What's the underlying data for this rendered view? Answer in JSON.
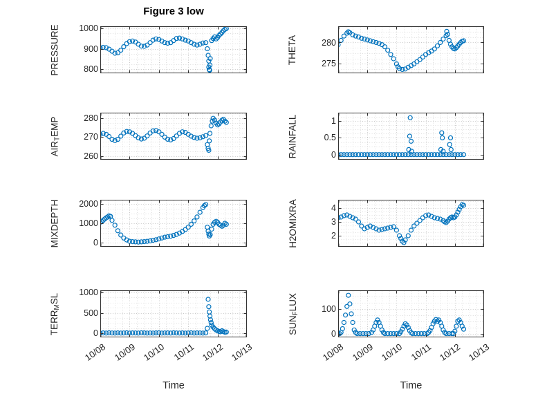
{
  "figure": {
    "title": "Figure 3 low",
    "xlabel": "Time"
  },
  "style": {
    "marker_color": "#0072BD",
    "box_color": "#333333",
    "grid_minor_color": "#dedede",
    "grid_major_color": "#c9c9c9",
    "text_color": "#262626",
    "background": "#ffffff"
  },
  "x_axis": {
    "lim": [
      0,
      5
    ],
    "ticks": [
      0,
      1,
      2,
      3,
      4,
      5
    ],
    "tick_labels": [
      "10/08",
      "10/09",
      "10/10",
      "10/11",
      "10/12",
      "10/13"
    ],
    "minor_step": 0.25
  },
  "chart_data": [
    {
      "name": "pressure",
      "type": "scatter",
      "label": "PRESSURE",
      "label_parts": [
        {
          "t": "PRESSURE",
          "sub": false
        }
      ],
      "ylim": [
        780,
        1010
      ],
      "yticks": [
        800,
        900,
        1000
      ],
      "ytick_labels": [
        "800",
        "900",
        "1000"
      ],
      "x": [
        0,
        0.1,
        0.2,
        0.3,
        0.4,
        0.5,
        0.6,
        0.7,
        0.8,
        0.9,
        1,
        1.1,
        1.2,
        1.3,
        1.4,
        1.5,
        1.6,
        1.7,
        1.8,
        1.9,
        2,
        2.1,
        2.2,
        2.3,
        2.4,
        2.5,
        2.6,
        2.7,
        2.8,
        2.9,
        3,
        3.1,
        3.2,
        3.3,
        3.4,
        3.5,
        3.6,
        3.65,
        3.68,
        3.7,
        3.7,
        3.72,
        3.73,
        3.74,
        3.75,
        3.8,
        3.85,
        3.9,
        3.95,
        4,
        4.05,
        4.1,
        4.15,
        4.2,
        4.25,
        4.3
      ],
      "y": [
        905,
        907,
        905,
        898,
        888,
        878,
        880,
        893,
        910,
        925,
        935,
        938,
        933,
        922,
        913,
        912,
        918,
        930,
        942,
        948,
        945,
        938,
        930,
        927,
        930,
        940,
        950,
        952,
        948,
        942,
        938,
        930,
        922,
        918,
        922,
        928,
        930,
        900,
        868,
        840,
        810,
        798,
        795,
        820,
        852,
        940,
        950,
        958,
        948,
        955,
        965,
        972,
        980,
        988,
        995,
        999
      ]
    },
    {
      "name": "theta",
      "type": "scatter",
      "label": "THETA",
      "label_parts": [
        {
          "t": "THETA",
          "sub": false
        }
      ],
      "ylim": [
        272.8,
        283.8
      ],
      "yticks": [
        275,
        280
      ],
      "ytick_labels": [
        "275",
        "280"
      ],
      "x": [
        0,
        0.1,
        0.2,
        0.3,
        0.4,
        0.5,
        0.6,
        0.7,
        0.8,
        0.9,
        1,
        1.1,
        1.2,
        1.3,
        1.4,
        1.5,
        1.6,
        1.7,
        1.8,
        1.9,
        2,
        2.1,
        2.2,
        2.3,
        2.4,
        2.5,
        2.6,
        2.7,
        2.8,
        2.9,
        3,
        3.1,
        3.2,
        3.3,
        3.4,
        3.5,
        3.6,
        3.7,
        3.8,
        3.9,
        4,
        4.1,
        4.2,
        4.3,
        0.35,
        2.05,
        3.72,
        3.75,
        3.85,
        3.95,
        4.05,
        4.15,
        4.25
      ],
      "y": [
        279.5,
        280.5,
        281.5,
        282.2,
        282.3,
        281.8,
        281.5,
        281.3,
        281,
        280.8,
        280.6,
        280.4,
        280.2,
        280,
        279.8,
        279.5,
        279,
        278.2,
        277.2,
        276.2,
        275,
        273.9,
        273.7,
        273.8,
        274.2,
        274.6,
        275,
        275.5,
        276,
        276.6,
        277.2,
        277.6,
        278,
        278.5,
        279.2,
        280,
        280.8,
        281.6,
        280.5,
        279,
        278.5,
        279.2,
        280,
        280.4,
        282.5,
        274.3,
        282.6,
        281.9,
        279.6,
        278.6,
        278.8,
        279.6,
        280.3
      ]
    },
    {
      "name": "air-temp",
      "type": "scatter",
      "label": "AIR_TEMP",
      "label_parts": [
        {
          "t": "AIR",
          "sub": false
        },
        {
          "t": "T",
          "sub": true
        },
        {
          "t": "EMP",
          "sub": false
        }
      ],
      "ylim": [
        258,
        283
      ],
      "yticks": [
        260,
        270,
        280
      ],
      "ytick_labels": [
        "260",
        "270",
        "280"
      ],
      "x": [
        0,
        0.1,
        0.2,
        0.3,
        0.4,
        0.5,
        0.6,
        0.7,
        0.8,
        0.9,
        1,
        1.1,
        1.2,
        1.3,
        1.4,
        1.5,
        1.6,
        1.7,
        1.8,
        1.9,
        2,
        2.1,
        2.2,
        2.3,
        2.4,
        2.5,
        2.6,
        2.7,
        2.8,
        2.9,
        3,
        3.1,
        3.2,
        3.3,
        3.4,
        3.5,
        3.6,
        3.65,
        3.68,
        3.7,
        3.72,
        3.74,
        3.78,
        3.82,
        3.85,
        3.9,
        3.95,
        4,
        4.05,
        4.1,
        4.15,
        4.2,
        4.25,
        4.3
      ],
      "y": [
        271.5,
        272,
        271.5,
        270.3,
        268.8,
        268.2,
        268.8,
        270.5,
        272.2,
        273,
        272.8,
        272,
        270.8,
        269.6,
        269,
        269.4,
        270.6,
        272.2,
        273.3,
        273.5,
        272.8,
        271.5,
        270,
        268.9,
        268.5,
        269.2,
        270.6,
        272,
        272.8,
        272.5,
        271.5,
        270.5,
        269.8,
        269.4,
        269.6,
        270.2,
        270.8,
        266,
        264,
        263,
        268,
        272,
        276,
        278.5,
        280,
        279,
        277.5,
        276.5,
        277,
        278,
        279,
        279.5,
        278.5,
        277.8
      ]
    },
    {
      "name": "rainfall",
      "type": "scatter",
      "label": "RAINFALL",
      "label_parts": [
        {
          "t": "RAINFALL",
          "sub": false
        }
      ],
      "ylim": [
        -0.15,
        1.25
      ],
      "yticks": [
        0,
        0.5,
        1
      ],
      "ytick_labels": [
        "0",
        "0.5",
        "1"
      ],
      "x": [
        0,
        0.1,
        0.2,
        0.3,
        0.4,
        0.5,
        0.6,
        0.7,
        0.8,
        0.9,
        1,
        1.1,
        1.2,
        1.3,
        1.4,
        1.5,
        1.6,
        1.7,
        1.8,
        1.9,
        2,
        2.1,
        2.2,
        2.3,
        2.4,
        2.5,
        2.6,
        2.7,
        2.8,
        2.9,
        3,
        3.1,
        3.2,
        3.3,
        3.4,
        3.5,
        3.6,
        3.7,
        3.8,
        3.9,
        4,
        4.1,
        4.2,
        4.3,
        2.42,
        2.45,
        2.47,
        2.5,
        2.52,
        3.52,
        3.55,
        3.57,
        3.6,
        3.82,
        3.85,
        3.87
      ],
      "y": [
        0,
        0,
        0,
        0,
        0,
        0,
        0,
        0,
        0,
        0,
        0,
        0,
        0,
        0,
        0,
        0,
        0,
        0,
        0,
        0,
        0,
        0,
        0,
        0,
        0,
        0,
        0,
        0,
        0,
        0,
        0,
        0,
        0,
        0,
        0,
        0,
        0,
        0,
        0,
        0,
        0,
        0,
        0,
        0,
        0.15,
        0.55,
        1.1,
        0.4,
        0.1,
        0.15,
        0.65,
        0.5,
        0.1,
        0.3,
        0.5,
        0.15
      ]
    },
    {
      "name": "mixdepth",
      "type": "scatter",
      "label": "MIXDEPTH",
      "label_parts": [
        {
          "t": "MIXDEPTH",
          "sub": false
        }
      ],
      "ylim": [
        -200,
        2200
      ],
      "yticks": [
        0,
        1000,
        2000
      ],
      "ytick_labels": [
        "0",
        "1000",
        "2000"
      ],
      "x": [
        0,
        0.05,
        0.1,
        0.15,
        0.2,
        0.25,
        0.3,
        0.35,
        0.4,
        0.5,
        0.6,
        0.7,
        0.8,
        0.9,
        1,
        1.1,
        1.2,
        1.3,
        1.4,
        1.5,
        1.6,
        1.7,
        1.8,
        1.9,
        2,
        2.1,
        2.2,
        2.3,
        2.4,
        2.5,
        2.6,
        2.7,
        2.8,
        2.9,
        3,
        3.1,
        3.2,
        3.3,
        3.4,
        3.5,
        3.55,
        3.6,
        3.65,
        3.68,
        3.7,
        3.72,
        3.75,
        3.8,
        3.85,
        3.9,
        3.95,
        4,
        4.05,
        4.1,
        4.15,
        4.2,
        4.25,
        4.3
      ],
      "y": [
        1050,
        1100,
        1150,
        1220,
        1280,
        1320,
        1380,
        1350,
        1150,
        900,
        620,
        400,
        250,
        150,
        80,
        60,
        50,
        40,
        50,
        60,
        80,
        100,
        130,
        160,
        200,
        250,
        290,
        310,
        340,
        380,
        430,
        500,
        580,
        680,
        800,
        950,
        1120,
        1320,
        1560,
        1800,
        1900,
        1960,
        800,
        600,
        450,
        350,
        420,
        700,
        950,
        1050,
        1100,
        1050,
        950,
        900,
        850,
        900,
        1000,
        950
      ]
    },
    {
      "name": "h2omixra",
      "type": "scatter",
      "label": "H2OMIXRA",
      "label_parts": [
        {
          "t": "H2OMIXRA",
          "sub": false
        }
      ],
      "ylim": [
        1.2,
        4.6
      ],
      "yticks": [
        2,
        3,
        4
      ],
      "ytick_labels": [
        "2",
        "3",
        "4"
      ],
      "x": [
        0,
        0.1,
        0.2,
        0.3,
        0.4,
        0.5,
        0.6,
        0.7,
        0.8,
        0.9,
        1,
        1.1,
        1.2,
        1.3,
        1.4,
        1.5,
        1.6,
        1.7,
        1.8,
        1.9,
        2,
        2.1,
        2.15,
        2.2,
        2.25,
        2.3,
        2.4,
        2.5,
        2.6,
        2.7,
        2.8,
        2.9,
        3,
        3.1,
        3.2,
        3.3,
        3.4,
        3.5,
        3.6,
        3.65,
        3.7,
        3.75,
        3.8,
        3.85,
        3.9,
        3.95,
        4,
        4.05,
        4.1,
        4.15,
        4.2,
        4.25,
        4.3
      ],
      "y": [
        3.3,
        3.35,
        3.45,
        3.5,
        3.4,
        3.3,
        3.2,
        3,
        2.7,
        2.5,
        2.6,
        2.7,
        2.6,
        2.5,
        2.4,
        2.45,
        2.5,
        2.55,
        2.6,
        2.65,
        2.4,
        2,
        1.8,
        1.6,
        1.5,
        1.7,
        2,
        2.4,
        2.7,
        2.9,
        3.1,
        3.3,
        3.45,
        3.5,
        3.4,
        3.3,
        3.25,
        3.2,
        3.1,
        3,
        2.95,
        3.05,
        3.2,
        3.3,
        3.35,
        3.3,
        3.35,
        3.5,
        3.7,
        3.9,
        4.1,
        4.25,
        4.2
      ]
    },
    {
      "name": "terr-msl",
      "type": "scatter",
      "label": "TERR_MSL",
      "label_parts": [
        {
          "t": "TERR",
          "sub": false
        },
        {
          "t": "M",
          "sub": true
        },
        {
          "t": "SL",
          "sub": false
        }
      ],
      "ylim": [
        -100,
        1050
      ],
      "yticks": [
        0,
        500,
        1000
      ],
      "ytick_labels": [
        "0",
        "500",
        "1000"
      ],
      "x": [
        0,
        0.1,
        0.2,
        0.3,
        0.4,
        0.5,
        0.6,
        0.7,
        0.8,
        0.9,
        1,
        1.1,
        1.2,
        1.3,
        1.4,
        1.5,
        1.6,
        1.7,
        1.8,
        1.9,
        2,
        2.1,
        2.2,
        2.3,
        2.4,
        2.5,
        2.6,
        2.7,
        2.8,
        2.9,
        3,
        3.1,
        3.2,
        3.3,
        3.4,
        3.5,
        3.6,
        3.65,
        3.68,
        3.7,
        3.72,
        3.74,
        3.76,
        3.78,
        3.8,
        3.85,
        3.9,
        3.95,
        4,
        4.05,
        4.1,
        4.15,
        4.2,
        4.25,
        4.3
      ],
      "y": [
        5,
        8,
        5,
        10,
        6,
        5,
        8,
        5,
        6,
        10,
        5,
        8,
        6,
        5,
        10,
        8,
        5,
        6,
        5,
        8,
        10,
        5,
        6,
        8,
        5,
        10,
        6,
        5,
        8,
        5,
        6,
        10,
        5,
        8,
        6,
        5,
        8,
        120,
        830,
        650,
        520,
        420,
        330,
        260,
        200,
        150,
        110,
        80,
        60,
        45,
        35,
        60,
        40,
        25,
        30
      ]
    },
    {
      "name": "sun-flux",
      "type": "scatter",
      "label": "SUN_FLUX",
      "label_parts": [
        {
          "t": "SUN",
          "sub": false
        },
        {
          "t": "F",
          "sub": true
        },
        {
          "t": "LUX",
          "sub": false
        }
      ],
      "ylim": [
        -15,
        175
      ],
      "yticks": [
        0,
        100
      ],
      "ytick_labels": [
        "0",
        "100"
      ],
      "x": [
        0,
        0.05,
        0.1,
        0.15,
        0.2,
        0.25,
        0.3,
        0.35,
        0.4,
        0.45,
        0.5,
        0.55,
        0.6,
        0.65,
        0.75,
        0.85,
        0.95,
        1.05,
        1.15,
        1.2,
        1.25,
        1.3,
        1.35,
        1.4,
        1.45,
        1.5,
        1.55,
        1.6,
        1.7,
        1.8,
        1.9,
        2,
        2.1,
        2.15,
        2.2,
        2.25,
        2.3,
        2.35,
        2.4,
        2.45,
        2.5,
        2.55,
        2.65,
        2.75,
        2.85,
        2.95,
        3.05,
        3.1,
        3.15,
        3.2,
        3.25,
        3.3,
        3.35,
        3.4,
        3.45,
        3.5,
        3.55,
        3.6,
        3.65,
        3.7,
        3.8,
        3.9,
        3.95,
        4,
        4.05,
        4.1,
        4.15,
        4.2,
        4.25,
        4.3
      ],
      "y": [
        0,
        0,
        5,
        20,
        45,
        75,
        110,
        155,
        120,
        80,
        45,
        15,
        5,
        0,
        0,
        0,
        0,
        0,
        5,
        15,
        30,
        45,
        55,
        45,
        30,
        15,
        5,
        0,
        0,
        0,
        0,
        0,
        0,
        8,
        18,
        30,
        40,
        35,
        25,
        12,
        4,
        0,
        0,
        0,
        0,
        0,
        0,
        5,
        12,
        25,
        40,
        50,
        57,
        50,
        55,
        45,
        30,
        15,
        5,
        0,
        0,
        0,
        0,
        10,
        30,
        50,
        55,
        45,
        30,
        18
      ]
    }
  ]
}
